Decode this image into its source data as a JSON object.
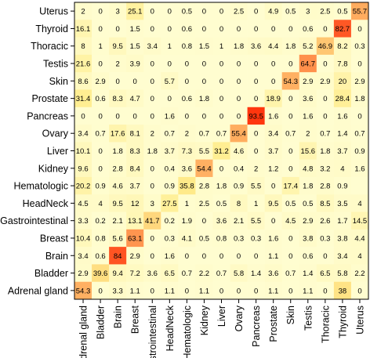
{
  "chart_data": {
    "type": "heatmap",
    "title": "",
    "xlabel": "",
    "ylabel": "",
    "rows": [
      "Uterus",
      "Thyroid",
      "Thoracic",
      "Testis",
      "Skin",
      "Prostate",
      "Pancreas",
      "Ovary",
      "Liver",
      "Kidney",
      "Hematologic",
      "HeadNeck",
      "Gastrointestinal",
      "Breast",
      "Brain",
      "Bladder",
      "Adrenal gland"
    ],
    "columns": [
      "Adrenal gland",
      "Bladder",
      "Brain",
      "Breast",
      "Gastrointestinal",
      "HeadNeck",
      "Hematologic",
      "Kidney",
      "Liver",
      "Ovary",
      "Pancreas",
      "Prostate",
      "Skin",
      "Testis",
      "Thoracic",
      "Thyroid",
      "Uterus"
    ],
    "cells": [
      [
        "2",
        "0",
        "3",
        "25.1",
        "0",
        "0",
        "0.5",
        "0",
        "0",
        "2.5",
        "0",
        "4.9",
        "0.5",
        "3",
        "2.5",
        "0.5",
        "55.7"
      ],
      [
        "16.1",
        "0",
        "0",
        "1.5",
        "0",
        "0",
        "0.6",
        "0",
        "0",
        "0",
        "0",
        "0",
        "0",
        "0.6",
        "0",
        "82.7",
        "0"
      ],
      [
        "8",
        "1",
        "9.5",
        "1.5",
        "3.4",
        "1",
        "0.8",
        "1.5",
        "1",
        "1.8",
        "3.6",
        "4.4",
        "1.8",
        "5.2",
        "46.9",
        "8.2",
        "0.3"
      ],
      [
        "21.6",
        "0",
        "2",
        "3.9",
        "0",
        "0",
        "0",
        "0",
        "0",
        "0",
        "0",
        "0",
        "0",
        "64.7",
        "0",
        "7.8",
        "0"
      ],
      [
        "8.6",
        "2.9",
        "0",
        "0",
        "0",
        "5.7",
        "0",
        "0",
        "0",
        "0",
        "0",
        "0",
        "54.3",
        "2.9",
        "2.9",
        "20",
        "2.9"
      ],
      [
        "31.4",
        "0.6",
        "8.3",
        "4.7",
        "0",
        "0",
        "0.6",
        "1.8",
        "0",
        "0",
        "0",
        "18.9",
        "0",
        "3.6",
        "0",
        "28.4",
        "1.8"
      ],
      [
        "0",
        "0",
        "0",
        "0",
        "0",
        "1.6",
        "0",
        "0",
        "0",
        "0",
        "93.5",
        "1.6",
        "0",
        "1.6",
        "0",
        "1.6",
        "0"
      ],
      [
        "3.4",
        "0.7",
        "17.6",
        "8.1",
        "2",
        "0.7",
        "2",
        "0.7",
        "0.7",
        "55.4",
        "0",
        "3.4",
        "0.7",
        "2",
        "0.7",
        "1.4",
        "0.7"
      ],
      [
        "10.1",
        "0",
        "1.8",
        "8.3",
        "1.8",
        "3.7",
        "7.3",
        "5.5",
        "31.2",
        "4.6",
        "0",
        "3.7",
        "0",
        "15.6",
        "1.8",
        "3.7",
        "0.9"
      ],
      [
        "9.6",
        "0",
        "2.8",
        "8.4",
        "0",
        "0.4",
        "3.6",
        "54.4",
        "0",
        "0.4",
        "2",
        "1.2",
        "0",
        "4.8",
        "3.2",
        "4",
        "1.6"
      ],
      [
        "20.2",
        "0.9",
        "4.6",
        "3.7",
        "0",
        "0.9",
        "35.8",
        "2.8",
        "1.8",
        "0.9",
        "5.5",
        "0",
        "17.4",
        "1.8",
        "2.8",
        "0.9",
        ""
      ],
      [
        "4.5",
        "4",
        "9.5",
        "12",
        "3",
        "27.5",
        "1",
        "2.5",
        "0.5",
        "8",
        "1",
        "9.5",
        "0.5",
        "0.5",
        "8.5",
        "3.5",
        "4"
      ],
      [
        "3.3",
        "0.2",
        "2.1",
        "13.1",
        "41.7",
        "0.2",
        "1.9",
        "0",
        "3.6",
        "2.1",
        "5.5",
        "0",
        "4.5",
        "2.9",
        "2.6",
        "1.7",
        "14.5"
      ],
      [
        "10.4",
        "0.8",
        "5.6",
        "63.1",
        "0",
        "0.3",
        "4.1",
        "0.5",
        "0.8",
        "0.3",
        "0.3",
        "1.6",
        "0",
        "3.8",
        "0.3",
        "3.8",
        "4.4"
      ],
      [
        "3.4",
        "0.6",
        "84",
        "2.9",
        "0",
        "1.6",
        "0",
        "0",
        "0",
        "0",
        "0",
        "1.1",
        "0",
        "0.6",
        "0",
        "3.4",
        "4"
      ],
      [
        "2.9",
        "39.6",
        "9.4",
        "7.2",
        "3.6",
        "6.5",
        "0.7",
        "2.2",
        "0.7",
        "5.8",
        "1.4",
        "3.6",
        "0.7",
        "1.4",
        "6.5",
        "5.8",
        "2.2"
      ],
      [
        "54.3",
        "0",
        "3.3",
        "1.1",
        "0",
        "1.1",
        "0",
        "1.1",
        "0",
        "0",
        "0",
        "1.1",
        "0",
        "1.1",
        "0",
        "38",
        "0"
      ]
    ],
    "color_scale": {
      "low": "#fffdd0",
      "mid": "#ffec8b",
      "high": "#ff2200"
    },
    "grid": true,
    "legend": "none"
  }
}
